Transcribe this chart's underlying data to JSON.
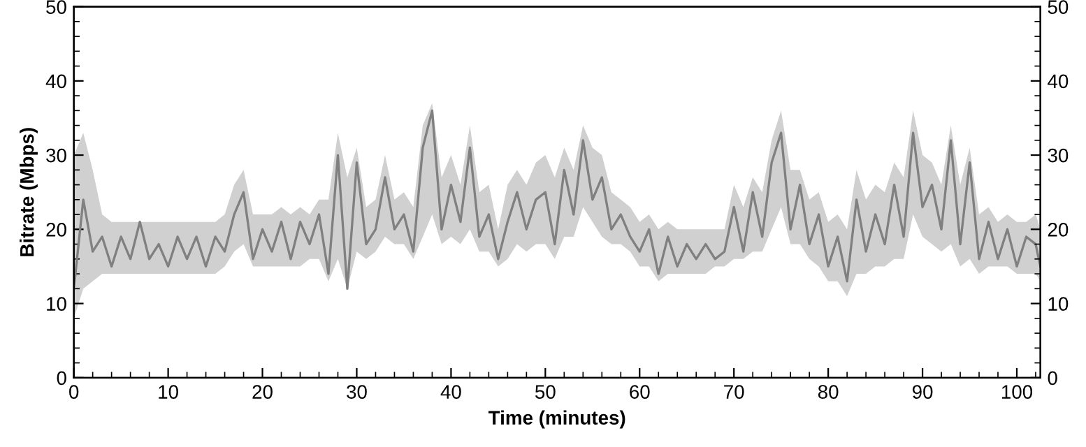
{
  "chart_data": {
    "type": "line",
    "xlabel": "Time (minutes)",
    "ylabel": "Bitrate (Mbps)",
    "xlim": [
      0,
      102.5
    ],
    "xticks": [
      0,
      10,
      20,
      30,
      40,
      50,
      60,
      70,
      80,
      90,
      100
    ],
    "ylim": [
      0,
      50
    ],
    "yticks": [
      0,
      10,
      20,
      30,
      40,
      50
    ],
    "y2lim": [
      0,
      50
    ],
    "y2ticks": [
      0,
      10,
      20,
      30,
      40,
      50
    ],
    "grid": false,
    "marker": "none",
    "line_style": "solid",
    "series": [
      {
        "color": "#808080",
        "x": [
          0,
          1,
          2,
          3,
          4,
          5,
          6,
          7,
          8,
          9,
          10,
          11,
          12,
          13,
          14,
          15,
          16,
          17,
          18,
          19,
          20,
          21,
          22,
          23,
          24,
          25,
          26,
          27,
          28,
          29,
          30,
          31,
          32,
          33,
          34,
          35,
          36,
          37,
          38,
          39,
          40,
          41,
          42,
          43,
          44,
          45,
          46,
          47,
          48,
          49,
          50,
          51,
          52,
          53,
          54,
          55,
          56,
          57,
          58,
          59,
          60,
          61,
          62,
          63,
          64,
          65,
          66,
          67,
          68,
          69,
          70,
          71,
          72,
          73,
          74,
          75,
          76,
          77,
          78,
          79,
          80,
          81,
          82,
          83,
          84,
          85,
          86,
          87,
          88,
          89,
          90,
          91,
          92,
          93,
          94,
          95,
          96,
          97,
          98,
          99,
          100,
          101,
          102,
          102.5
        ],
        "values": [
          12,
          24,
          17,
          19,
          15,
          19,
          16,
          21,
          16,
          18,
          15,
          19,
          16,
          19,
          15,
          19,
          17,
          22,
          25,
          16,
          20,
          17,
          21,
          16,
          21,
          18,
          22,
          14,
          30,
          12,
          29,
          18,
          20,
          27,
          20,
          22,
          17,
          31,
          36,
          20,
          26,
          21,
          31,
          19,
          22,
          16,
          21,
          25,
          20,
          24,
          25,
          18,
          28,
          22,
          32,
          24,
          27,
          20,
          22,
          19,
          17,
          20,
          14,
          19,
          15,
          18,
          16,
          18,
          16,
          17,
          23,
          17,
          25,
          19,
          29,
          33,
          20,
          26,
          18,
          22,
          15,
          19,
          13,
          24,
          17,
          22,
          18,
          26,
          19,
          33,
          23,
          26,
          20,
          32,
          18,
          29,
          16,
          21,
          16,
          20,
          15,
          19,
          18,
          15
        ],
        "lower": [
          8,
          12,
          13,
          14,
          14,
          14,
          14,
          14,
          14,
          14,
          14,
          14,
          14,
          14,
          14,
          14,
          15,
          17,
          18,
          15,
          15,
          15,
          15,
          15,
          15,
          16,
          16,
          13,
          16,
          12,
          17,
          16,
          17,
          19,
          18,
          18,
          16,
          19,
          22,
          18,
          19,
          18,
          20,
          17,
          17,
          15,
          16,
          18,
          17,
          18,
          18,
          16,
          19,
          19,
          23,
          21,
          19,
          18,
          18,
          17,
          15,
          15,
          13,
          14,
          14,
          14,
          14,
          14,
          15,
          15,
          16,
          16,
          17,
          17,
          20,
          23,
          18,
          18,
          16,
          15,
          13,
          13,
          11,
          14,
          14,
          15,
          15,
          16,
          16,
          22,
          19,
          18,
          17,
          18,
          15,
          16,
          14,
          15,
          15,
          15,
          14,
          14,
          14,
          13
        ],
        "upper": [
          30,
          33,
          28,
          22,
          21,
          21,
          21,
          21,
          21,
          21,
          21,
          21,
          21,
          21,
          21,
          21,
          22,
          26,
          28,
          22,
          22,
          22,
          23,
          22,
          23,
          22,
          24,
          24,
          33,
          27,
          31,
          23,
          24,
          30,
          24,
          25,
          23,
          34,
          37,
          27,
          30,
          26,
          34,
          25,
          26,
          20,
          26,
          28,
          26,
          29,
          30,
          27,
          31,
          28,
          34,
          31,
          30,
          25,
          24,
          23,
          21,
          22,
          20,
          21,
          20,
          20,
          20,
          20,
          20,
          20,
          26,
          23,
          27,
          25,
          32,
          36,
          28,
          28,
          24,
          25,
          21,
          22,
          20,
          28,
          24,
          26,
          25,
          29,
          27,
          36,
          30,
          29,
          26,
          34,
          26,
          31,
          22,
          23,
          21,
          22,
          21,
          21,
          22,
          20
        ]
      }
    ]
  }
}
